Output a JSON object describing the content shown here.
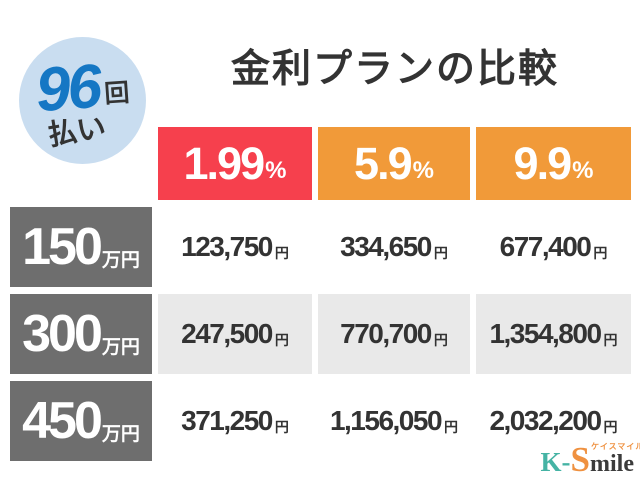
{
  "title": "金利プランの比較",
  "badge": {
    "count": "96",
    "count_unit": "回",
    "label": "払い"
  },
  "plans": [
    {
      "rate": "1.99",
      "unit": "%"
    },
    {
      "rate": "5.9",
      "unit": "%"
    },
    {
      "rate": "9.9",
      "unit": "%"
    }
  ],
  "rows": [
    {
      "amount": "150",
      "amount_unit": "万円",
      "values": [
        {
          "num": "123,750",
          "unit": "円"
        },
        {
          "num": "334,650",
          "unit": "円"
        },
        {
          "num": "677,400",
          "unit": "円"
        }
      ]
    },
    {
      "amount": "300",
      "amount_unit": "万円",
      "values": [
        {
          "num": "247,500",
          "unit": "円"
        },
        {
          "num": "770,700",
          "unit": "円"
        },
        {
          "num": "1,354,800",
          "unit": "円"
        }
      ]
    },
    {
      "amount": "450",
      "amount_unit": "万円",
      "values": [
        {
          "num": "371,250",
          "unit": "円"
        },
        {
          "num": "1,156,050",
          "unit": "円"
        },
        {
          "num": "2,032,200",
          "unit": "円"
        }
      ]
    }
  ],
  "logo": {
    "part1": "K-",
    "part2": "S",
    "part3": "mile",
    "kana": "ケイスマイル"
  },
  "colors": {
    "highlight_red": "#f6404d",
    "orange": "#f19a39",
    "label_gray": "#6e6e6e",
    "cell_alt_gray": "#e9e9e9",
    "badge_bg_blue": "#c9ddf0",
    "badge_text_blue": "#1577c4",
    "text_dark": "#333333",
    "logo_teal": "#45b3a4",
    "logo_orange": "#ef9140"
  },
  "chart_data": {
    "type": "table",
    "title": "金利プランの比較",
    "subtitle": "96回払い",
    "columns": [
      "1.99%",
      "5.9%",
      "9.9%"
    ],
    "row_headers": [
      "150万円",
      "300万円",
      "450万円"
    ],
    "cells_text": [
      [
        "123,750円",
        "334,650円",
        "677,400円"
      ],
      [
        "247,500円",
        "770,700円",
        "1,354,800円"
      ],
      [
        "371,250円",
        "1,156,050円",
        "2,032,200円"
      ]
    ],
    "cells_numeric_yen": [
      [
        123750,
        334650,
        677400
      ],
      [
        247500,
        770700,
        1354800
      ],
      [
        371250,
        1156050,
        2032200
      ]
    ],
    "highlighted_column": "1.99%"
  }
}
